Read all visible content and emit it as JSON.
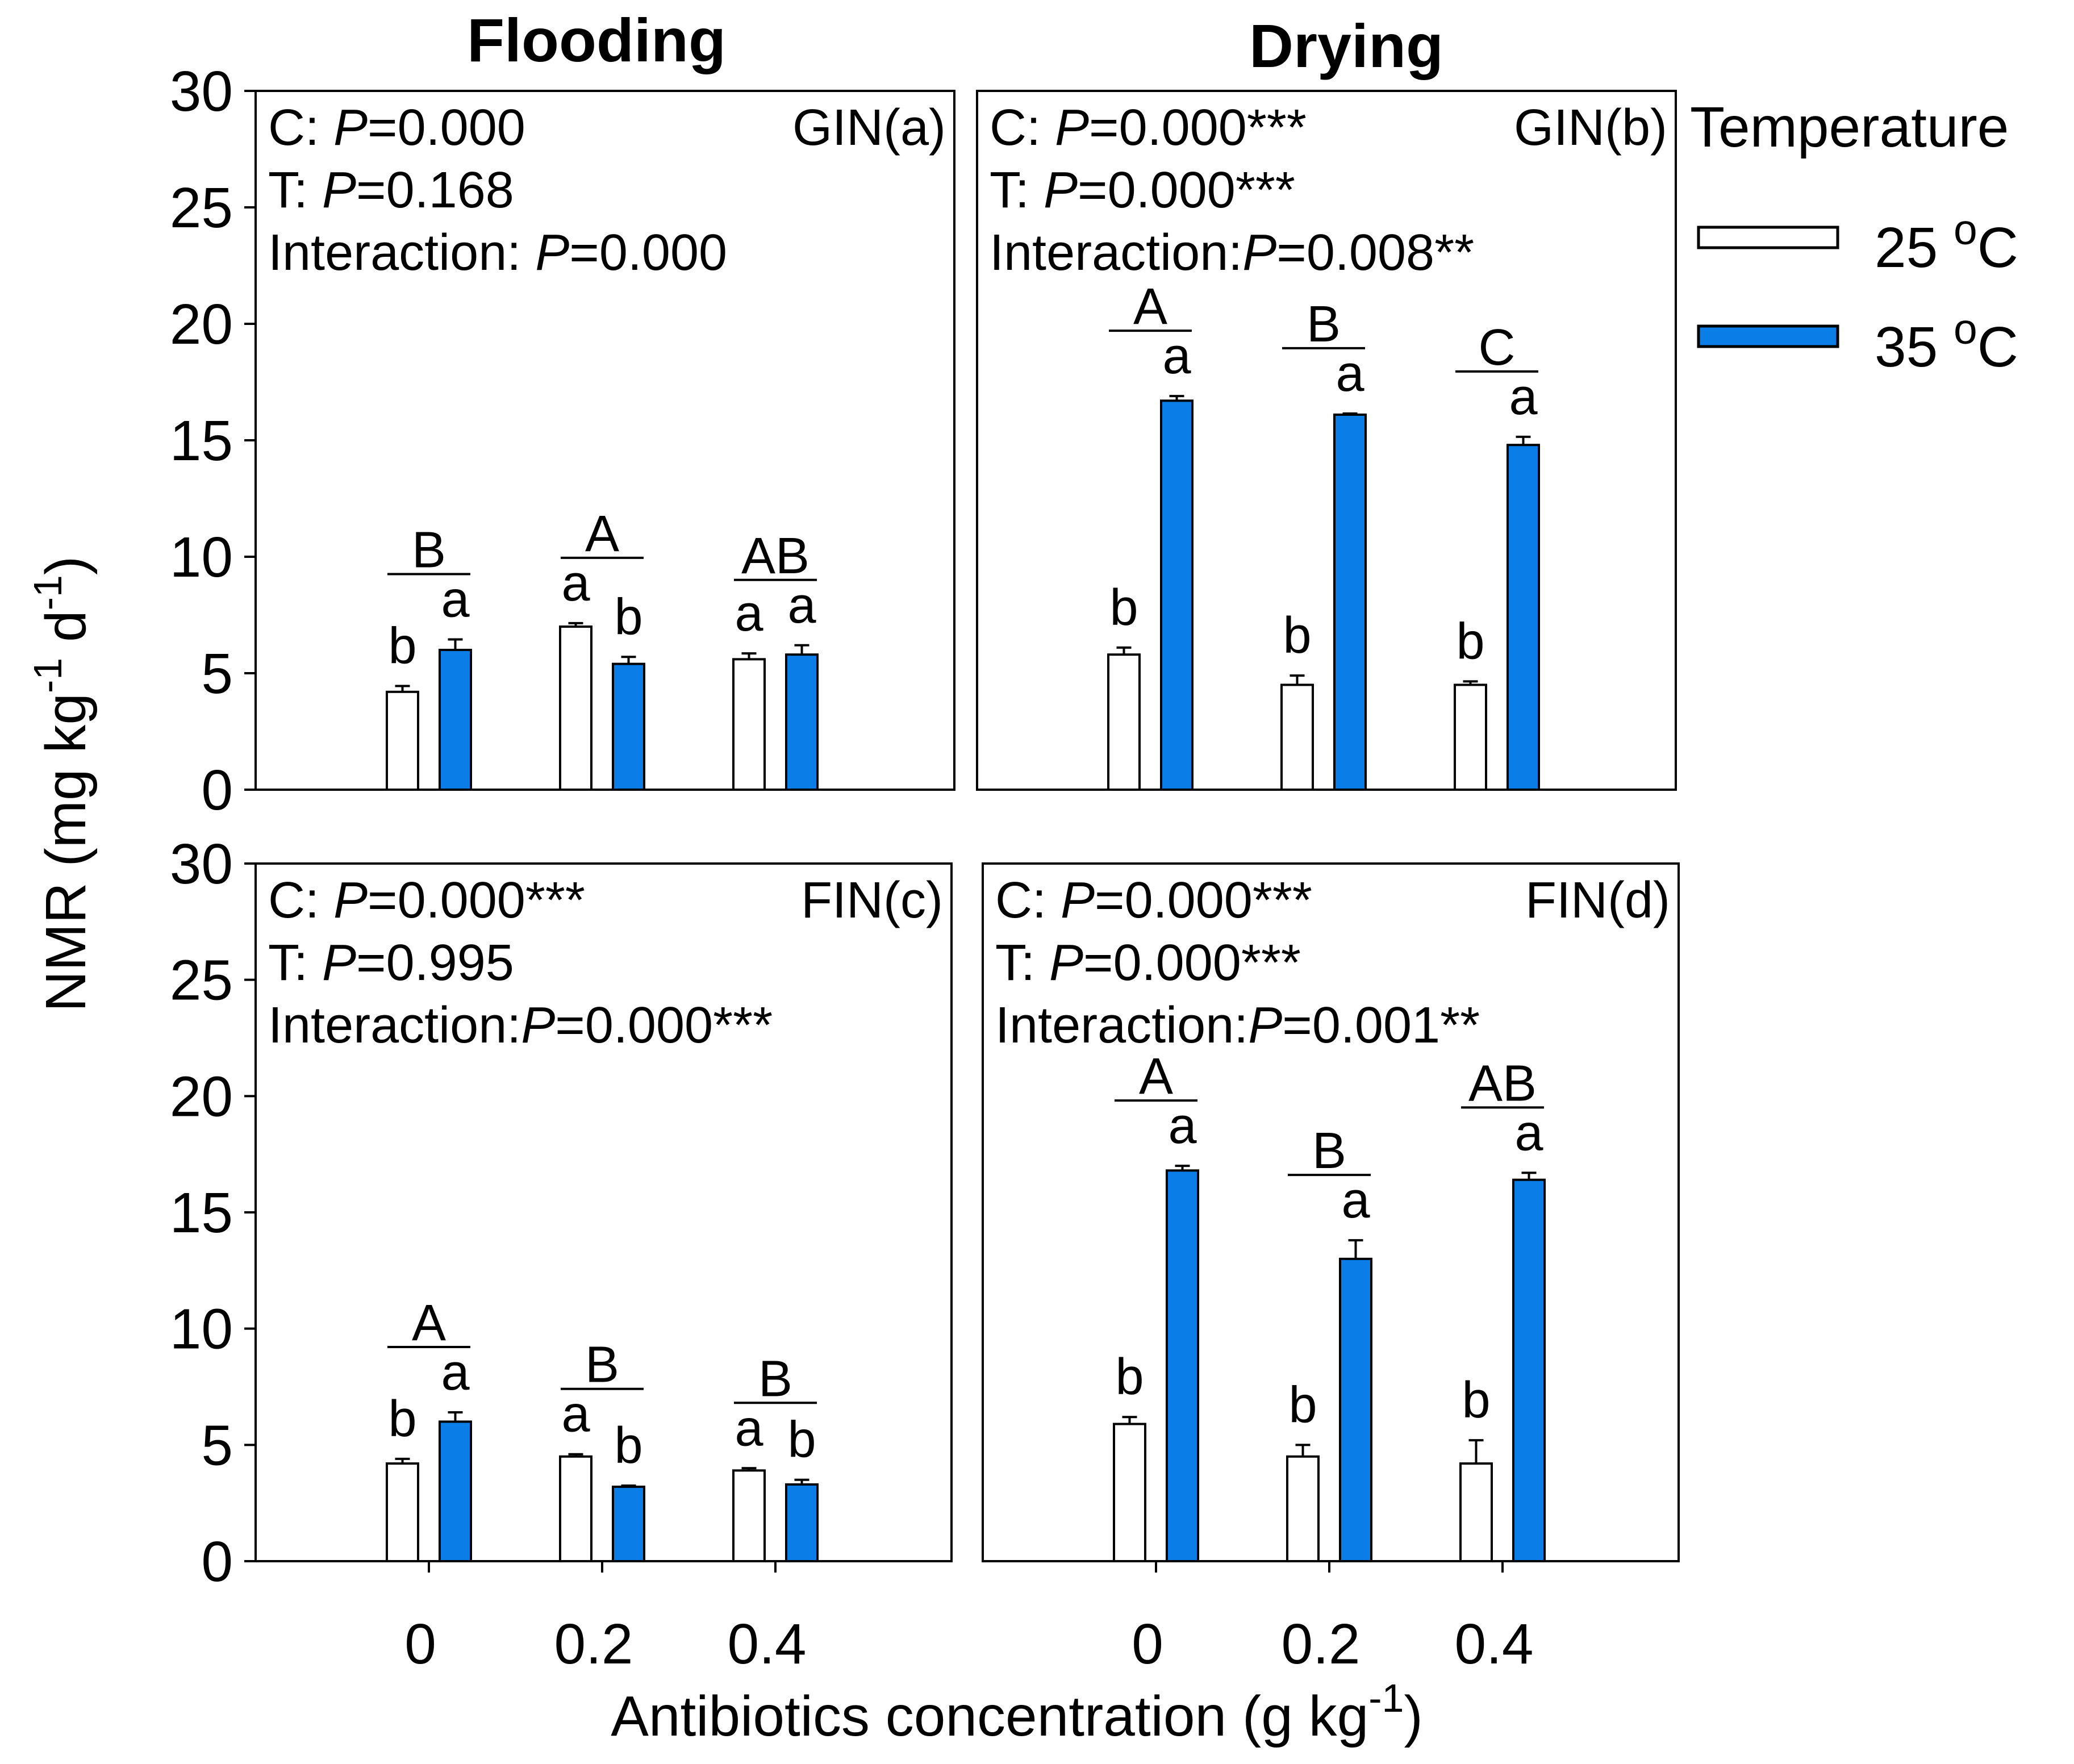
{
  "figure": {
    "column_titles": [
      "Flooding",
      "Drying"
    ],
    "ylabel_main": "NMR (mg kg",
    "ylabel_sup1": "-1",
    "ylabel_mid": " d",
    "ylabel_sup2": "-1",
    "ylabel_end": ")",
    "xlabel_main": "Antibiotics concentration (g kg",
    "xlabel_sup": "-1",
    "xlabel_end": ")",
    "legend": {
      "title": "Temperature",
      "unit_prefix": "o",
      "unit_suffix": "C",
      "entries": [
        {
          "label": "25 ",
          "color": "#ffffff"
        },
        {
          "label": "35 ",
          "color": "#0a7ee6"
        }
      ]
    },
    "colors": {
      "bar_25": "#ffffff",
      "bar_35": "#0a7ee6",
      "stroke": "#000000"
    }
  },
  "chart_data": [
    {
      "type": "bar",
      "id": "a",
      "tag": "GIN(a)",
      "stats": [
        {
          "prefix": "C: ",
          "p": "P",
          "value": "=0.000"
        },
        {
          "prefix": "T: ",
          "p": "P",
          "value": "=0.168"
        },
        {
          "prefix": "Interaction: ",
          "p": "P",
          "value": "=0.000"
        }
      ],
      "categories": [
        "0",
        "0.2",
        "0.4"
      ],
      "series": [
        {
          "name": "25 oC",
          "values": [
            4.2,
            7.0,
            5.6
          ],
          "errors": [
            0.25,
            0.15,
            0.25
          ]
        },
        {
          "name": "35 oC",
          "values": [
            6.0,
            5.4,
            5.8
          ],
          "errors": [
            0.45,
            0.3,
            0.4
          ]
        }
      ],
      "letters_25": [
        "b",
        "a",
        "a"
      ],
      "letters_35": [
        "a",
        "b",
        "a"
      ],
      "group_letters": [
        "B",
        "A",
        "AB"
      ],
      "ylim": [
        0,
        30
      ],
      "yticks": [
        "0",
        "5",
        "10",
        "15",
        "20",
        "25",
        "30"
      ]
    },
    {
      "type": "bar",
      "id": "b",
      "tag": "GIN(b)",
      "stats": [
        {
          "prefix": "C: ",
          "p": "P",
          "value": "=0.000***"
        },
        {
          "prefix": "T: ",
          "p": "P",
          "value": "=0.000***"
        },
        {
          "prefix": "Interaction:",
          "p": "P",
          "value": "=0.008**"
        }
      ],
      "categories": [
        "0",
        "0.2",
        "0.4"
      ],
      "series": [
        {
          "name": "25 oC",
          "values": [
            5.8,
            4.5,
            4.5
          ],
          "errors": [
            0.3,
            0.4,
            0.15
          ]
        },
        {
          "name": "35 oC",
          "values": [
            16.7,
            16.1,
            14.8
          ],
          "errors": [
            0.2,
            0.05,
            0.35
          ]
        }
      ],
      "letters_25": [
        "b",
        "b",
        "b"
      ],
      "letters_35": [
        "a",
        "a",
        "a"
      ],
      "group_letters": [
        "A",
        "B",
        "C"
      ],
      "ylim": [
        0,
        30
      ]
    },
    {
      "type": "bar",
      "id": "c",
      "tag": "FIN(c)",
      "stats": [
        {
          "prefix": "C: ",
          "p": "P",
          "value": "=0.000***"
        },
        {
          "prefix": "T: ",
          "p": "P",
          "value": "=0.995"
        },
        {
          "prefix": "Interaction:",
          "p": "P",
          "value": "=0.000***"
        }
      ],
      "categories": [
        "0",
        "0.2",
        "0.4"
      ],
      "series": [
        {
          "name": "25 oC",
          "values": [
            4.2,
            4.5,
            3.9
          ],
          "errors": [
            0.2,
            0.1,
            0.1
          ]
        },
        {
          "name": "35 oC",
          "values": [
            6.0,
            3.2,
            3.3
          ],
          "errors": [
            0.4,
            0.05,
            0.2
          ]
        }
      ],
      "letters_25": [
        "b",
        "a",
        "a"
      ],
      "letters_35": [
        "a",
        "b",
        "b"
      ],
      "group_letters": [
        "A",
        "B",
        "B"
      ],
      "ylim": [
        0,
        30
      ],
      "yticks": [
        "0",
        "5",
        "10",
        "15",
        "20",
        "25",
        "30"
      ]
    },
    {
      "type": "bar",
      "id": "d",
      "tag": "FIN(d)",
      "stats": [
        {
          "prefix": "C: ",
          "p": "P",
          "value": "=0.000***"
        },
        {
          "prefix": "T: ",
          "p": "P",
          "value": "=0.000***"
        },
        {
          "prefix": "Interaction:",
          "p": "P",
          "value": "=0.001**"
        }
      ],
      "categories": [
        "0",
        "0.2",
        "0.4"
      ],
      "series": [
        {
          "name": "25 oC",
          "values": [
            5.9,
            4.5,
            4.2
          ],
          "errors": [
            0.3,
            0.5,
            1.0
          ]
        },
        {
          "name": "35 oC",
          "values": [
            16.8,
            13.0,
            16.4
          ],
          "errors": [
            0.2,
            0.8,
            0.3
          ]
        }
      ],
      "letters_25": [
        "b",
        "b",
        "b"
      ],
      "letters_35": [
        "a",
        "a",
        "a"
      ],
      "group_letters": [
        "A",
        "B",
        "AB"
      ],
      "ylim": [
        0,
        30
      ]
    }
  ]
}
